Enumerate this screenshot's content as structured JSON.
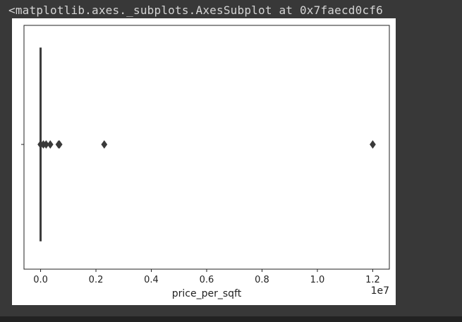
{
  "output": {
    "repr_text": "<matplotlib.axes._subplots.AxesSubplot at 0x7faecd0cf6"
  },
  "colors": {
    "background": "#383838",
    "box": "#3a3a3a",
    "outlier": "#3a3a3a"
  },
  "chart_data": {
    "type": "boxplot",
    "orientation": "horizontal",
    "xlabel": "price_per_sqft",
    "offset_label": "1e7",
    "xlim": [
      -0.06,
      1.26
    ],
    "xticks": [
      0.0,
      0.2,
      0.4,
      0.6,
      0.8,
      1.0,
      1.2
    ],
    "xtick_labels": [
      "0.0",
      "0.2",
      "0.4",
      "0.6",
      "0.8",
      "1.0",
      "1.2"
    ],
    "box": {
      "min": 0.0,
      "q1": 0.0,
      "median": 0.0,
      "q3": 0.0,
      "max": 0.0
    },
    "outliers": [
      0.0,
      0.01,
      0.02,
      0.035,
      0.065,
      0.068,
      0.23,
      1.2
    ]
  }
}
